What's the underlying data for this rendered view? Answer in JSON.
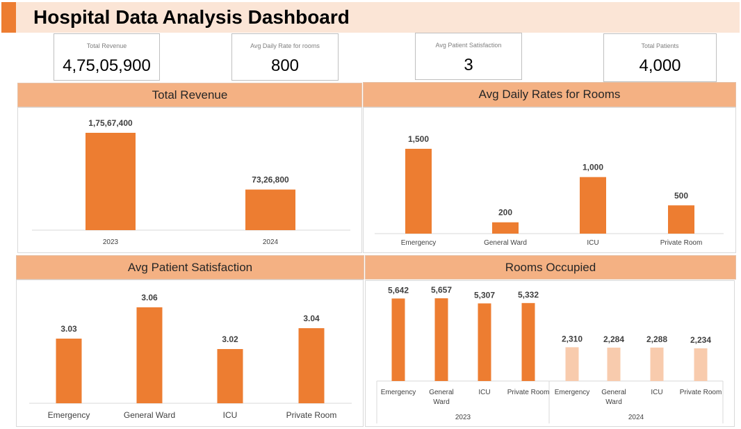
{
  "header": {
    "title": "Hospital Data Analysis Dashboard",
    "accent_color": "#ed7d31"
  },
  "kpis": [
    {
      "label": "Total Revenue",
      "value": "4,75,05,900"
    },
    {
      "label": "Avg Daily Rate for rooms",
      "value": "800"
    },
    {
      "label": "Avg Patient Satisfaction",
      "value": "3"
    },
    {
      "label": "Total Patients",
      "value": "4,000"
    }
  ],
  "panels": {
    "revenue": {
      "title": "Total Revenue"
    },
    "rates": {
      "title": "Avg Daily Rates for Rooms"
    },
    "satisfaction": {
      "title": "Avg Patient Satisfaction"
    },
    "rooms": {
      "title": "Rooms Occupied"
    }
  },
  "colors": {
    "bar": "#ed7d31",
    "bar_light": "#f8cbad",
    "header": "#f4b183"
  },
  "chart_data": [
    {
      "id": "revenue",
      "type": "bar",
      "title": "Total Revenue",
      "categories": [
        "2023",
        "2024"
      ],
      "values": [
        17567400,
        7326800
      ],
      "labels": [
        "1,75,67,400",
        "73,26,800"
      ],
      "ylim": [
        0,
        17567400
      ],
      "grid": false
    },
    {
      "id": "rates",
      "type": "bar",
      "title": "Avg Daily Rates for Rooms",
      "categories": [
        "Emergency",
        "General Ward",
        "ICU",
        "Private Room"
      ],
      "values": [
        1500,
        200,
        1000,
        500
      ],
      "labels": [
        "1,500",
        "200",
        "1,000",
        "500"
      ],
      "ylim": [
        0,
        1500
      ],
      "grid": false
    },
    {
      "id": "satisfaction",
      "type": "bar",
      "title": "Avg Patient Satisfaction",
      "categories": [
        "Emergency",
        "General Ward",
        "ICU",
        "Private Room"
      ],
      "values": [
        3.03,
        3.06,
        3.02,
        3.04
      ],
      "labels": [
        "3.03",
        "3.06",
        "3.02",
        "3.04"
      ],
      "ylim": [
        2.98,
        3.06
      ],
      "grid": false
    },
    {
      "id": "rooms",
      "type": "bar",
      "title": "Rooms Occupied",
      "groups": [
        {
          "name": "2023",
          "categories": [
            "Emergency",
            "General Ward",
            "ICU",
            "Private Room"
          ],
          "values": [
            5642,
            5657,
            5307,
            5332
          ],
          "labels": [
            "5,642",
            "5,657",
            "5,307",
            "5,332"
          ]
        },
        {
          "name": "2024",
          "categories": [
            "Emergency",
            "General Ward",
            "ICU",
            "Private Room"
          ],
          "values": [
            2310,
            2284,
            2288,
            2234
          ],
          "labels": [
            "2,310",
            "2,284",
            "2,288",
            "2,234"
          ]
        }
      ],
      "ylim": [
        0,
        5657
      ],
      "grid": false
    }
  ]
}
